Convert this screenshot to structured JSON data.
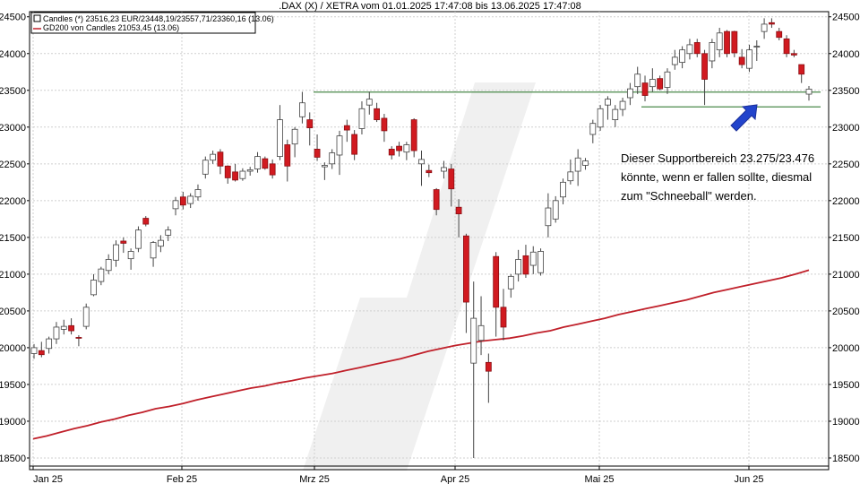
{
  "chart_data": {
    "type": "candlestick",
    "title": ".DAX (X) / XETRA vom 01.01.2025 17:47:08 bis 13.06.2025 17:47:08",
    "legend": [
      {
        "label": "Candles (*) 23516,23 EUR/23448,19/23557,71/23360,16 (13.06)",
        "color": "#000000"
      },
      {
        "label": "GD200 von Candles 21053,45 (13.06)",
        "color": "#c0202a"
      }
    ],
    "x_tick_labels": [
      "Jan 25",
      "Feb 25",
      "Mrz 25",
      "Apr 25",
      "Mai 25",
      "Jun 25"
    ],
    "y_tick_labels": [
      "18500",
      "19000",
      "19500",
      "20000",
      "20500",
      "21000",
      "21500",
      "22000",
      "22500",
      "23000",
      "23500",
      "24000",
      "24500"
    ],
    "ylim": [
      18390,
      24570
    ],
    "support_levels": [
      23476,
      23275
    ],
    "annotation": [
      "Dieser Supportbereich 23.275/23.476",
      "könnte, wenn er fallen sollte, diesmal",
      "zum \"Schneeball\" werden."
    ],
    "colors": {
      "up": "#ffffff",
      "down": "#d11a20",
      "ma": "#c0202a",
      "support": "#4a8a4a",
      "arrow": "#2244cc"
    },
    "candles": [
      {
        "o": 19920,
        "h": 20050,
        "l": 19850,
        "c": 20000
      },
      {
        "o": 19960,
        "h": 20080,
        "l": 19870,
        "c": 19905
      },
      {
        "o": 19990,
        "h": 20150,
        "l": 19920,
        "c": 20120
      },
      {
        "o": 20120,
        "h": 20350,
        "l": 20050,
        "c": 20280
      },
      {
        "o": 20250,
        "h": 20380,
        "l": 20180,
        "c": 20290
      },
      {
        "o": 20300,
        "h": 20400,
        "l": 20180,
        "c": 20230
      },
      {
        "o": 20140,
        "h": 20170,
        "l": 20020,
        "c": 20130
      },
      {
        "o": 20290,
        "h": 20600,
        "l": 20250,
        "c": 20550
      },
      {
        "o": 20720,
        "h": 21000,
        "l": 20700,
        "c": 20920
      },
      {
        "o": 20900,
        "h": 21100,
        "l": 20850,
        "c": 21070
      },
      {
        "o": 21050,
        "h": 21270,
        "l": 21000,
        "c": 21200
      },
      {
        "o": 21190,
        "h": 21460,
        "l": 21100,
        "c": 21400
      },
      {
        "o": 21450,
        "h": 21500,
        "l": 21290,
        "c": 21420
      },
      {
        "o": 21210,
        "h": 21350,
        "l": 21060,
        "c": 21310
      },
      {
        "o": 21350,
        "h": 21650,
        "l": 21300,
        "c": 21600
      },
      {
        "o": 21760,
        "h": 21790,
        "l": 21650,
        "c": 21680
      },
      {
        "o": 21220,
        "h": 21450,
        "l": 21100,
        "c": 21430
      },
      {
        "o": 21380,
        "h": 21530,
        "l": 21300,
        "c": 21460
      },
      {
        "o": 21530,
        "h": 21650,
        "l": 21450,
        "c": 21600
      },
      {
        "o": 21890,
        "h": 22050,
        "l": 21800,
        "c": 22000
      },
      {
        "o": 22050,
        "h": 22120,
        "l": 21880,
        "c": 21940
      },
      {
        "o": 21960,
        "h": 22100,
        "l": 21900,
        "c": 22060
      },
      {
        "o": 22050,
        "h": 22220,
        "l": 22000,
        "c": 22150
      },
      {
        "o": 22360,
        "h": 22600,
        "l": 22300,
        "c": 22550
      },
      {
        "o": 22550,
        "h": 22680,
        "l": 22500,
        "c": 22630
      },
      {
        "o": 22660,
        "h": 22700,
        "l": 22360,
        "c": 22470
      },
      {
        "o": 22470,
        "h": 22480,
        "l": 22230,
        "c": 22310
      },
      {
        "o": 22390,
        "h": 22500,
        "l": 22260,
        "c": 22280
      },
      {
        "o": 22300,
        "h": 22440,
        "l": 22270,
        "c": 22400
      },
      {
        "o": 22400,
        "h": 22460,
        "l": 22340,
        "c": 22420
      },
      {
        "o": 22430,
        "h": 22660,
        "l": 22380,
        "c": 22600
      },
      {
        "o": 22570,
        "h": 22600,
        "l": 22420,
        "c": 22440
      },
      {
        "o": 22500,
        "h": 22560,
        "l": 22300,
        "c": 22350
      },
      {
        "o": 22600,
        "h": 23300,
        "l": 22550,
        "c": 23100
      },
      {
        "o": 22760,
        "h": 22830,
        "l": 22260,
        "c": 22470
      },
      {
        "o": 22770,
        "h": 23000,
        "l": 22590,
        "c": 22970
      },
      {
        "o": 23140,
        "h": 23480,
        "l": 23050,
        "c": 23330
      },
      {
        "o": 23100,
        "h": 23200,
        "l": 22750,
        "c": 22990
      },
      {
        "o": 22700,
        "h": 22900,
        "l": 22540,
        "c": 22590
      },
      {
        "o": 22460,
        "h": 22520,
        "l": 22280,
        "c": 22480
      },
      {
        "o": 22500,
        "h": 22700,
        "l": 22430,
        "c": 22650
      },
      {
        "o": 22620,
        "h": 22950,
        "l": 22350,
        "c": 22880
      },
      {
        "o": 23020,
        "h": 23100,
        "l": 22800,
        "c": 22960
      },
      {
        "o": 22900,
        "h": 22960,
        "l": 22550,
        "c": 22630
      },
      {
        "o": 22980,
        "h": 23350,
        "l": 22900,
        "c": 23250
      },
      {
        "o": 23300,
        "h": 23480,
        "l": 23170,
        "c": 23380
      },
      {
        "o": 23250,
        "h": 23330,
        "l": 23070,
        "c": 23100
      },
      {
        "o": 23120,
        "h": 23180,
        "l": 22800,
        "c": 22950
      },
      {
        "o": 22700,
        "h": 22740,
        "l": 22560,
        "c": 22620
      },
      {
        "o": 22740,
        "h": 22800,
        "l": 22600,
        "c": 22680
      },
      {
        "o": 22660,
        "h": 22800,
        "l": 22550,
        "c": 22760
      },
      {
        "o": 23100,
        "h": 23120,
        "l": 22590,
        "c": 22680
      },
      {
        "o": 22500,
        "h": 22680,
        "l": 22200,
        "c": 22560
      },
      {
        "o": 22410,
        "h": 22490,
        "l": 22320,
        "c": 22380
      },
      {
        "o": 22150,
        "h": 22170,
        "l": 21800,
        "c": 21880
      },
      {
        "o": 22400,
        "h": 22540,
        "l": 22300,
        "c": 22450
      },
      {
        "o": 22430,
        "h": 22500,
        "l": 21920,
        "c": 22160
      },
      {
        "o": 21910,
        "h": 22020,
        "l": 21500,
        "c": 21820
      },
      {
        "o": 21520,
        "h": 21550,
        "l": 20200,
        "c": 20620
      },
      {
        "o": 19790,
        "h": 20900,
        "l": 18500,
        "c": 20400
      },
      {
        "o": 20100,
        "h": 20700,
        "l": 19900,
        "c": 20300
      },
      {
        "o": 19800,
        "h": 19920,
        "l": 19250,
        "c": 19680
      },
      {
        "o": 21240,
        "h": 21300,
        "l": 20150,
        "c": 20550
      },
      {
        "o": 20550,
        "h": 20800,
        "l": 20100,
        "c": 20280
      },
      {
        "o": 20800,
        "h": 21000,
        "l": 20680,
        "c": 20970
      },
      {
        "o": 21000,
        "h": 21330,
        "l": 20900,
        "c": 21200
      },
      {
        "o": 21250,
        "h": 21400,
        "l": 20950,
        "c": 21000
      },
      {
        "o": 21120,
        "h": 21380,
        "l": 21000,
        "c": 21300
      },
      {
        "o": 21020,
        "h": 21350,
        "l": 20980,
        "c": 21310
      },
      {
        "o": 21660,
        "h": 22100,
        "l": 21500,
        "c": 21900
      },
      {
        "o": 21750,
        "h": 22060,
        "l": 21700,
        "c": 22000
      },
      {
        "o": 22050,
        "h": 22300,
        "l": 21950,
        "c": 22250
      },
      {
        "o": 22270,
        "h": 22560,
        "l": 22220,
        "c": 22390
      },
      {
        "o": 22400,
        "h": 22700,
        "l": 22200,
        "c": 22580
      },
      {
        "o": 22480,
        "h": 22580,
        "l": 22420,
        "c": 22540
      },
      {
        "o": 22900,
        "h": 23100,
        "l": 22780,
        "c": 23050
      },
      {
        "o": 23000,
        "h": 23300,
        "l": 22950,
        "c": 23250
      },
      {
        "o": 23300,
        "h": 23420,
        "l": 23100,
        "c": 23380
      },
      {
        "o": 23100,
        "h": 23300,
        "l": 23000,
        "c": 23240
      },
      {
        "o": 23240,
        "h": 23400,
        "l": 23150,
        "c": 23350
      },
      {
        "o": 23400,
        "h": 23600,
        "l": 23300,
        "c": 23520
      },
      {
        "o": 23550,
        "h": 23820,
        "l": 23450,
        "c": 23720
      },
      {
        "o": 23600,
        "h": 23700,
        "l": 23350,
        "c": 23430
      },
      {
        "o": 23550,
        "h": 23800,
        "l": 23480,
        "c": 23650
      },
      {
        "o": 23660,
        "h": 23700,
        "l": 23500,
        "c": 23520
      },
      {
        "o": 23540,
        "h": 23800,
        "l": 23450,
        "c": 23750
      },
      {
        "o": 23850,
        "h": 24050,
        "l": 23780,
        "c": 23950
      },
      {
        "o": 23880,
        "h": 24100,
        "l": 23800,
        "c": 24050
      },
      {
        "o": 24000,
        "h": 24200,
        "l": 23920,
        "c": 24120
      },
      {
        "o": 24150,
        "h": 24200,
        "l": 23950,
        "c": 24000
      },
      {
        "o": 24000,
        "h": 24050,
        "l": 23300,
        "c": 23650
      },
      {
        "o": 23900,
        "h": 24200,
        "l": 23800,
        "c": 24150
      },
      {
        "o": 24050,
        "h": 24350,
        "l": 23950,
        "c": 24280
      },
      {
        "o": 24300,
        "h": 24320,
        "l": 23950,
        "c": 24000
      },
      {
        "o": 24300,
        "h": 24310,
        "l": 23950,
        "c": 24010
      },
      {
        "o": 23950,
        "h": 24060,
        "l": 23800,
        "c": 23850
      },
      {
        "o": 23800,
        "h": 24120,
        "l": 23750,
        "c": 24050
      },
      {
        "o": 24090,
        "h": 24180,
        "l": 23900,
        "c": 24100
      },
      {
        "o": 24300,
        "h": 24480,
        "l": 24200,
        "c": 24400
      },
      {
        "o": 24420,
        "h": 24480,
        "l": 24350,
        "c": 24400
      },
      {
        "o": 24300,
        "h": 24350,
        "l": 24180,
        "c": 24220
      },
      {
        "o": 24200,
        "h": 24250,
        "l": 23950,
        "c": 24000
      },
      {
        "o": 24000,
        "h": 24050,
        "l": 23950,
        "c": 23980
      },
      {
        "o": 23850,
        "h": 23850,
        "l": 23600,
        "c": 23720
      },
      {
        "o": 23448,
        "h": 23558,
        "l": 23360,
        "c": 23516
      }
    ],
    "ma200": [
      18760,
      18800,
      18850,
      18900,
      18940,
      18990,
      19030,
      19080,
      19120,
      19170,
      19200,
      19240,
      19290,
      19330,
      19370,
      19410,
      19450,
      19480,
      19520,
      19550,
      19590,
      19620,
      19650,
      19690,
      19730,
      19770,
      19810,
      19850,
      19900,
      19950,
      19990,
      20030,
      20060,
      20090,
      20110,
      20130,
      20160,
      20200,
      20230,
      20280,
      20320,
      20360,
      20400,
      20450,
      20490,
      20530,
      20570,
      20610,
      20650,
      20700,
      20750,
      20790,
      20830,
      20870,
      20910,
      20950,
      21000,
      21054
    ]
  }
}
